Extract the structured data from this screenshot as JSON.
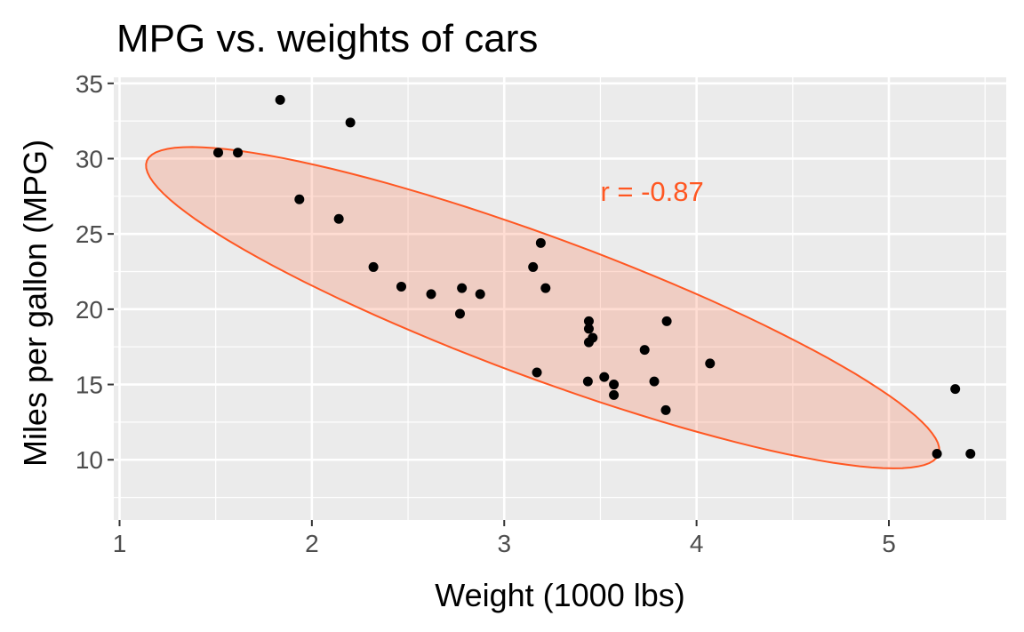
{
  "chart_data": {
    "type": "scatter",
    "title": "MPG vs. weights of cars",
    "xlabel": "Weight (1000 lbs)",
    "ylabel": "Miles per gallon (MPG)",
    "xlim": [
      0.97,
      5.61
    ],
    "ylim": [
      6.0,
      35.4
    ],
    "x_ticks": [
      1,
      2,
      3,
      4,
      5
    ],
    "y_ticks": [
      10,
      15,
      20,
      25,
      30,
      35
    ],
    "grid": true,
    "legend": "none",
    "annotation": {
      "text": "r = -0.87",
      "x": 3.5,
      "y": 27.2
    },
    "ellipse": {
      "center": [
        3.2,
        20.1
      ],
      "half_axis_major": [
        1.87,
        -10.66
      ],
      "half_axis_minor": [
        0.87,
        0.51
      ]
    },
    "points": [
      {
        "x": 1.513,
        "y": 30.4
      },
      {
        "x": 1.615,
        "y": 30.4
      },
      {
        "x": 1.835,
        "y": 33.9
      },
      {
        "x": 1.935,
        "y": 27.3
      },
      {
        "x": 2.14,
        "y": 26.0
      },
      {
        "x": 2.2,
        "y": 32.4
      },
      {
        "x": 2.32,
        "y": 22.8
      },
      {
        "x": 2.465,
        "y": 21.5
      },
      {
        "x": 2.62,
        "y": 21.0
      },
      {
        "x": 2.77,
        "y": 19.7
      },
      {
        "x": 2.78,
        "y": 21.4
      },
      {
        "x": 2.875,
        "y": 21.0
      },
      {
        "x": 3.15,
        "y": 22.8
      },
      {
        "x": 3.17,
        "y": 15.8
      },
      {
        "x": 3.19,
        "y": 24.4
      },
      {
        "x": 3.215,
        "y": 21.4
      },
      {
        "x": 3.435,
        "y": 15.2
      },
      {
        "x": 3.44,
        "y": 18.7
      },
      {
        "x": 3.44,
        "y": 19.2
      },
      {
        "x": 3.44,
        "y": 17.8
      },
      {
        "x": 3.46,
        "y": 18.1
      },
      {
        "x": 3.52,
        "y": 15.5
      },
      {
        "x": 3.57,
        "y": 14.3
      },
      {
        "x": 3.57,
        "y": 15.0
      },
      {
        "x": 3.73,
        "y": 17.3
      },
      {
        "x": 3.78,
        "y": 15.2
      },
      {
        "x": 3.84,
        "y": 13.3
      },
      {
        "x": 3.845,
        "y": 19.2
      },
      {
        "x": 4.07,
        "y": 16.4
      },
      {
        "x": 5.25,
        "y": 10.4
      },
      {
        "x": 5.345,
        "y": 14.7
      },
      {
        "x": 5.424,
        "y": 10.4
      }
    ]
  },
  "colors": {
    "panel_bg": "#ebebeb",
    "grid": "#ffffff",
    "point": "#000000",
    "ellipse_stroke": "#ff5722",
    "ellipse_fill": "#ff5722",
    "annotation": "#ff5722",
    "tick_text": "#4d4d4d",
    "tick_mark": "#333333"
  }
}
